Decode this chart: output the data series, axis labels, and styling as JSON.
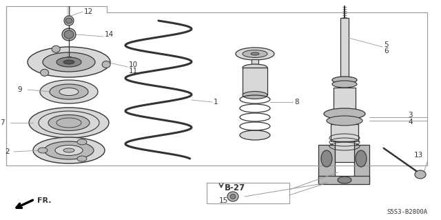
{
  "bg_color": "#ffffff",
  "line_color": "#333333",
  "gray_light": "#d8d8d8",
  "gray_mid": "#b8b8b8",
  "gray_dark": "#888888",
  "diagram_code": "S5S3-B2800A",
  "ref_label": "FR.",
  "page_ref": "B-27",
  "border_color": "#999999",
  "label_fs": 7.5
}
